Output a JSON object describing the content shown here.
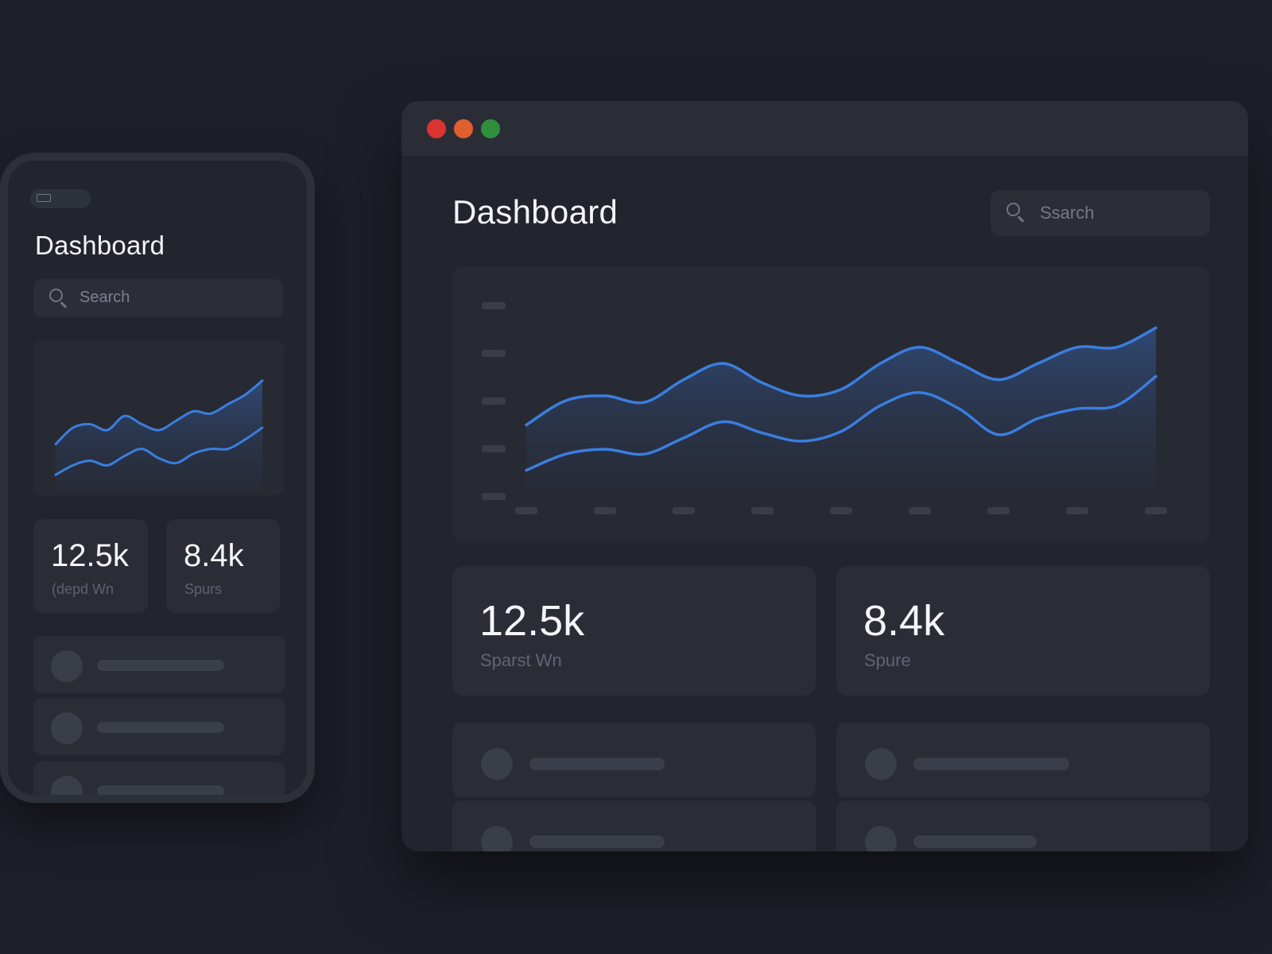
{
  "phone": {
    "title": "Dashboard",
    "search": {
      "placeholder": "Search"
    },
    "stats": [
      {
        "value": "12.5k",
        "label": "(depd Wn"
      },
      {
        "value": "8.4k",
        "label": "Spurs"
      }
    ],
    "list_rows": 3,
    "chart_data": {
      "type": "area",
      "x": [
        0,
        1,
        2,
        3,
        4,
        5,
        6,
        7,
        8,
        9,
        10,
        11,
        12
      ],
      "series": [
        {
          "values": [
            38,
            52,
            55,
            50,
            62,
            55,
            50,
            58,
            66,
            64,
            72,
            80,
            92
          ]
        },
        {
          "values": [
            12,
            20,
            24,
            20,
            28,
            34,
            26,
            22,
            30,
            34,
            34,
            42,
            52
          ]
        }
      ],
      "ylim": [
        0,
        100
      ]
    }
  },
  "window": {
    "title": "Dashboard",
    "search": {
      "placeholder": "Ssarch"
    },
    "stats": [
      {
        "value": "12.5k",
        "label": "Sparst Wn"
      },
      {
        "value": "8.4k",
        "label": "Spure"
      }
    ],
    "list_rows": 4,
    "colors": {
      "background": "#1d2029",
      "panel": "#272a33",
      "card": "#2a2d36",
      "accent_line": "#3a7ee0",
      "close": "#d9342f",
      "minimize": "#e05f2c",
      "maximize": "#2f8f3b"
    },
    "chart_data": {
      "type": "area",
      "x": [
        0,
        1,
        2,
        3,
        4,
        5,
        6,
        7,
        8,
        9,
        10,
        11,
        12,
        13,
        14,
        15,
        16
      ],
      "series": [
        {
          "values": [
            40,
            55,
            58,
            54,
            68,
            78,
            66,
            58,
            62,
            78,
            88,
            78,
            68,
            78,
            88,
            88,
            100
          ]
        },
        {
          "values": [
            12,
            22,
            25,
            22,
            32,
            42,
            35,
            30,
            36,
            52,
            60,
            50,
            34,
            44,
            50,
            52,
            70
          ]
        }
      ],
      "ylim": [
        0,
        110
      ],
      "y_ticks": 5,
      "x_ticks": 9,
      "tick_labels_visible": false
    }
  }
}
